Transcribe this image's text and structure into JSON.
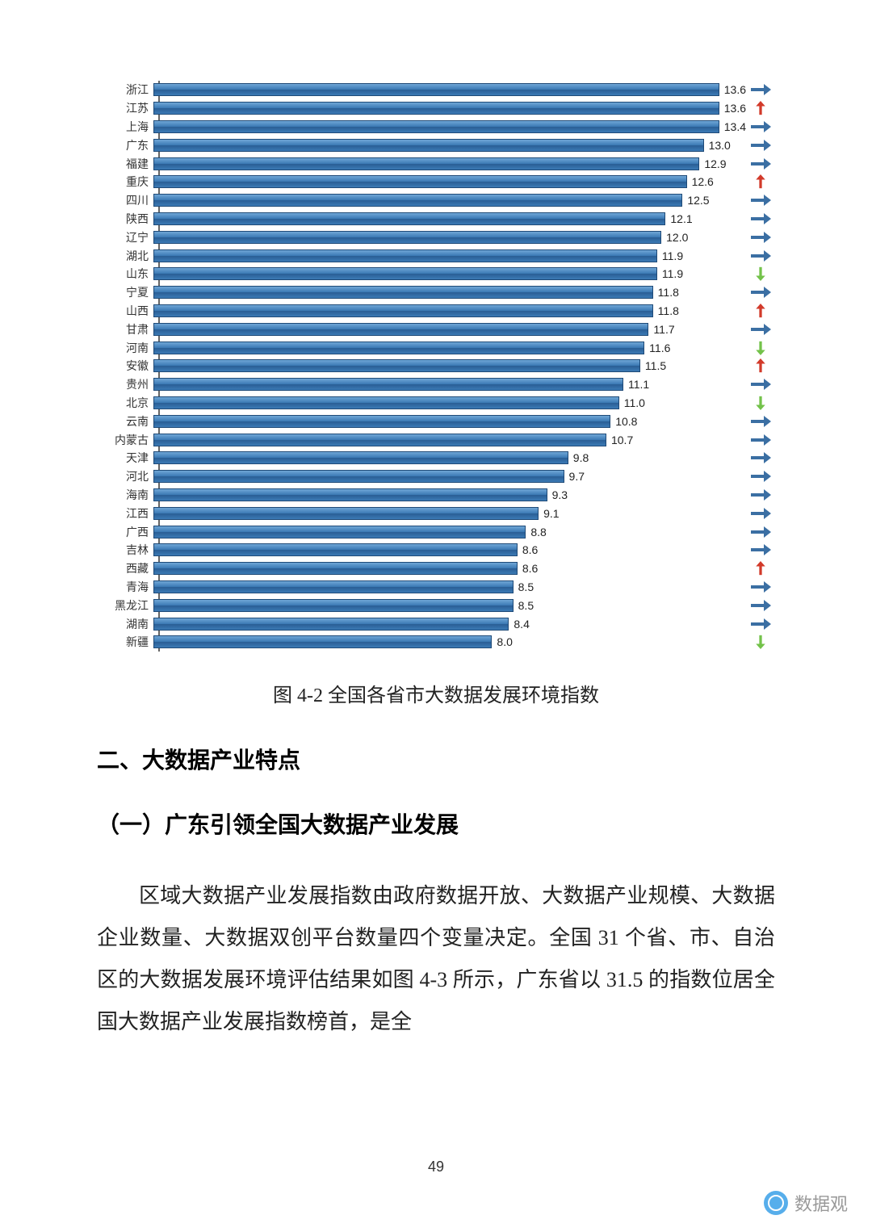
{
  "chart": {
    "type": "bar-horizontal",
    "max_value": 14.0,
    "bar_fill_top": "#6fa6d6",
    "bar_fill_bottom": "#2a5e95",
    "bar_border": "#1f4a77",
    "label_fontsize": 14,
    "value_fontsize": 14,
    "background_color": "#ffffff",
    "axis_color": "#666666",
    "trend_colors": {
      "right": "#3b6fa3",
      "up": "#d23a2a",
      "down": "#73c24a"
    },
    "rows": [
      {
        "label": "浙江",
        "value": 13.6,
        "trend": "right"
      },
      {
        "label": "江苏",
        "value": 13.6,
        "trend": "up"
      },
      {
        "label": "上海",
        "value": 13.4,
        "trend": "right"
      },
      {
        "label": "广东",
        "value": 13.0,
        "trend": "right"
      },
      {
        "label": "福建",
        "value": 12.9,
        "trend": "right"
      },
      {
        "label": "重庆",
        "value": 12.6,
        "trend": "up"
      },
      {
        "label": "四川",
        "value": 12.5,
        "trend": "right"
      },
      {
        "label": "陕西",
        "value": 12.1,
        "trend": "right"
      },
      {
        "label": "辽宁",
        "value": 12.0,
        "trend": "right"
      },
      {
        "label": "湖北",
        "value": 11.9,
        "trend": "right"
      },
      {
        "label": "山东",
        "value": 11.9,
        "trend": "down"
      },
      {
        "label": "宁夏",
        "value": 11.8,
        "trend": "right"
      },
      {
        "label": "山西",
        "value": 11.8,
        "trend": "up"
      },
      {
        "label": "甘肃",
        "value": 11.7,
        "trend": "right"
      },
      {
        "label": "河南",
        "value": 11.6,
        "trend": "down"
      },
      {
        "label": "安徽",
        "value": 11.5,
        "trend": "up"
      },
      {
        "label": "贵州",
        "value": 11.1,
        "trend": "right"
      },
      {
        "label": "北京",
        "value": 11.0,
        "trend": "down"
      },
      {
        "label": "云南",
        "value": 10.8,
        "trend": "right"
      },
      {
        "label": "内蒙古",
        "value": 10.7,
        "trend": "right"
      },
      {
        "label": "天津",
        "value": 9.8,
        "trend": "right"
      },
      {
        "label": "河北",
        "value": 9.7,
        "trend": "right"
      },
      {
        "label": "海南",
        "value": 9.3,
        "trend": "right"
      },
      {
        "label": "江西",
        "value": 9.1,
        "trend": "right"
      },
      {
        "label": "广西",
        "value": 8.8,
        "trend": "right"
      },
      {
        "label": "吉林",
        "value": 8.6,
        "trend": "right"
      },
      {
        "label": "西藏",
        "value": 8.6,
        "trend": "up"
      },
      {
        "label": "青海",
        "value": 8.5,
        "trend": "right"
      },
      {
        "label": "黑龙江",
        "value": 8.5,
        "trend": "right"
      },
      {
        "label": "湖南",
        "value": 8.4,
        "trend": "right"
      },
      {
        "label": "新疆",
        "value": 8.0,
        "trend": "down"
      }
    ]
  },
  "caption": "图 4-2 全国各省市大数据发展环境指数",
  "heading2": "二、大数据产业特点",
  "heading3": "（一）广东引领全国大数据产业发展",
  "paragraph": "区域大数据产业发展指数由政府数据开放、大数据产业规模、大数据企业数量、大数据双创平台数量四个变量决定。全国 31 个省、市、自治区的大数据发展环境评估结果如图 4-3 所示，广东省以 31.5 的指数位居全国大数据产业发展指数榜首，是全",
  "page_number": "49",
  "watermark": "数据观"
}
